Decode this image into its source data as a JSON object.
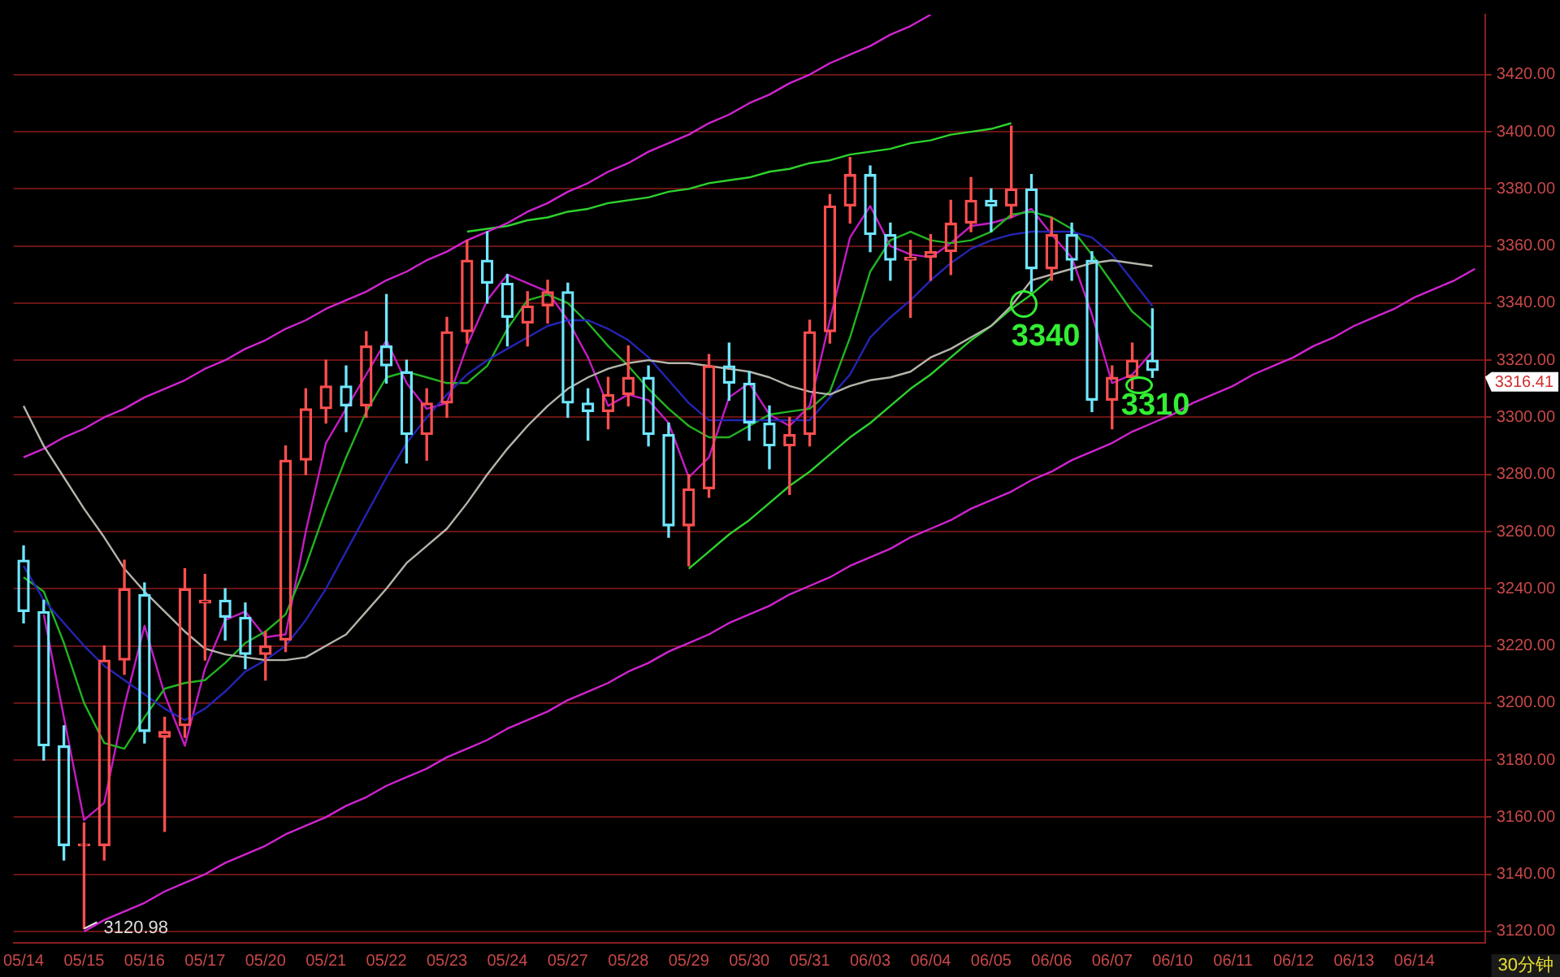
{
  "chart_data": {
    "type": "candlestick",
    "categories": [
      "05/14",
      null,
      null,
      "05/15",
      null,
      null,
      "05/16",
      null,
      null,
      "05/17",
      null,
      null,
      "05/20",
      null,
      null,
      "05/21",
      null,
      null,
      "05/22",
      null,
      null,
      "05/23",
      null,
      null,
      "05/24",
      null,
      null,
      "05/27",
      null,
      null,
      "05/28",
      null,
      null,
      "05/29",
      null,
      null,
      "05/30",
      null,
      null,
      "05/31",
      null,
      null,
      "06/03",
      null,
      null,
      "06/04",
      null,
      null,
      "06/05",
      null,
      null,
      "06/06",
      null,
      null,
      "06/07",
      null,
      null,
      "06/10",
      null,
      null,
      "06/11",
      null,
      null,
      "06/12",
      null,
      null,
      "06/13",
      null,
      null,
      "06/14",
      null,
      null,
      null
    ],
    "ohlc": [
      [
        3250,
        3255,
        3228,
        3232
      ],
      [
        3232,
        3236,
        3180,
        3185
      ],
      [
        3185,
        3192,
        3145,
        3150
      ],
      [
        3150,
        3158,
        3120.98,
        3150
      ],
      [
        3150,
        3220,
        3145,
        3215
      ],
      [
        3215,
        3250,
        3210,
        3240
      ],
      [
        3238,
        3242,
        3186,
        3190
      ],
      [
        3188,
        3195,
        3155,
        3190
      ],
      [
        3192,
        3247,
        3188,
        3240
      ],
      [
        3235,
        3245,
        3215,
        3236
      ],
      [
        3236,
        3240,
        3222,
        3230
      ],
      [
        3230,
        3235,
        3212,
        3217
      ],
      [
        3217,
        3225,
        3208,
        3220
      ],
      [
        3222,
        3290,
        3218,
        3285
      ],
      [
        3285,
        3310,
        3280,
        3303
      ],
      [
        3303,
        3320,
        3298,
        3311
      ],
      [
        3311,
        3318,
        3295,
        3304
      ],
      [
        3304,
        3330,
        3300,
        3325
      ],
      [
        3325,
        3343,
        3312,
        3318
      ],
      [
        3316,
        3320,
        3284,
        3294
      ],
      [
        3294,
        3310,
        3285,
        3305
      ],
      [
        3305,
        3335,
        3300,
        3330
      ],
      [
        3330,
        3362,
        3326,
        3355
      ],
      [
        3355,
        3365,
        3340,
        3347
      ],
      [
        3347,
        3350,
        3325,
        3335
      ],
      [
        3333,
        3344,
        3325,
        3339
      ],
      [
        3339,
        3348,
        3333,
        3344
      ],
      [
        3344,
        3347,
        3300,
        3305
      ],
      [
        3305,
        3310,
        3292,
        3302
      ],
      [
        3302,
        3314,
        3296,
        3308
      ],
      [
        3308,
        3325,
        3304,
        3314
      ],
      [
        3314,
        3318,
        3290,
        3294
      ],
      [
        3294,
        3298,
        3258,
        3262
      ],
      [
        3262,
        3280,
        3248,
        3275
      ],
      [
        3275,
        3322,
        3272,
        3318
      ],
      [
        3318,
        3326,
        3306,
        3312
      ],
      [
        3312,
        3316,
        3292,
        3298
      ],
      [
        3298,
        3304,
        3282,
        3290
      ],
      [
        3290,
        3300,
        3273,
        3294
      ],
      [
        3294,
        3334,
        3290,
        3330
      ],
      [
        3330,
        3378,
        3326,
        3374
      ],
      [
        3374,
        3391,
        3368,
        3385
      ],
      [
        3385,
        3388,
        3358,
        3364
      ],
      [
        3364,
        3368,
        3348,
        3355
      ],
      [
        3355,
        3362,
        3335,
        3356
      ],
      [
        3356,
        3364,
        3348,
        3358
      ],
      [
        3358,
        3376,
        3350,
        3368
      ],
      [
        3368,
        3384,
        3365,
        3376
      ],
      [
        3376,
        3380,
        3365,
        3374
      ],
      [
        3374,
        3402,
        3370,
        3380
      ],
      [
        3380,
        3385,
        3344,
        3352
      ],
      [
        3352,
        3370,
        3348,
        3364
      ],
      [
        3364,
        3368,
        3348,
        3355
      ],
      [
        3355,
        3358,
        3302,
        3306
      ],
      [
        3306,
        3318,
        3296,
        3314
      ],
      [
        3314,
        3326,
        3310,
        3320
      ],
      [
        3320,
        3338,
        3314,
        3316.41
      ],
      null,
      null,
      null,
      null,
      null,
      null,
      null,
      null,
      null,
      null,
      null,
      null,
      null,
      null,
      null,
      null
    ],
    "colors": [
      "#6fe6ff",
      "#6fe6ff",
      "#6fe6ff",
      "#ff4f4f",
      "#ff4f4f",
      "#ff4f4f",
      "#6fe6ff",
      "#ff4f4f",
      "#ff4f4f",
      "#ff4f4f",
      "#6fe6ff",
      "#6fe6ff",
      "#ff4f4f",
      "#ff4f4f",
      "#ff4f4f",
      "#ff4f4f",
      "#6fe6ff",
      "#ff4f4f",
      "#6fe6ff",
      "#6fe6ff",
      "#ff4f4f",
      "#ff4f4f",
      "#ff4f4f",
      "#6fe6ff",
      "#6fe6ff",
      "#ff4f4f",
      "#ff4f4f",
      "#6fe6ff",
      "#6fe6ff",
      "#ff4f4f",
      "#ff4f4f",
      "#6fe6ff",
      "#6fe6ff",
      "#ff4f4f",
      "#ff4f4f",
      "#6fe6ff",
      "#6fe6ff",
      "#6fe6ff",
      "#ff4f4f",
      "#ff4f4f",
      "#ff4f4f",
      "#ff4f4f",
      "#6fe6ff",
      "#6fe6ff",
      "#ff4f4f",
      "#ff4f4f",
      "#ff4f4f",
      "#ff4f4f",
      "#6fe6ff",
      "#ff4f4f",
      "#6fe6ff",
      "#ff4f4f",
      "#6fe6ff",
      "#6fe6ff",
      "#ff4f4f",
      "#ff4f4f",
      "#6fe6ff",
      null,
      null,
      null,
      null,
      null,
      null,
      null,
      null,
      null,
      null,
      null,
      null,
      null,
      null,
      null,
      null
    ],
    "series": [
      {
        "type": "line",
        "color": "#b4b4aa",
        "values": [
          3304,
          3290,
          3279,
          3268,
          3258,
          3247,
          3239,
          3232,
          3225,
          3219,
          3217,
          3216,
          3215,
          3215,
          3216,
          3220,
          3224,
          3232,
          3240,
          3249,
          3255,
          3261,
          3270,
          3280,
          3289,
          3297,
          3304,
          3310,
          3314,
          3317,
          3319,
          3320,
          3319,
          3319,
          3318,
          3317,
          3316,
          3314,
          3311,
          3309,
          3308,
          3311,
          3313,
          3314,
          3316,
          3321,
          3324,
          3328,
          3332,
          3339,
          3348,
          3350,
          3352,
          3354,
          3355,
          3354,
          3353,
          null,
          null,
          null,
          null,
          null,
          null,
          null,
          null,
          null,
          null,
          null,
          null,
          null,
          null,
          null,
          null
        ]
      },
      {
        "type": "line",
        "color": "#2424b4",
        "values": [
          3248,
          3236,
          3228,
          3220,
          3213,
          3208,
          3203,
          3198,
          3194,
          3198,
          3204,
          3211,
          3215,
          3220,
          3229,
          3240,
          3253,
          3266,
          3279,
          3291,
          3300,
          3308,
          3315,
          3320,
          3324,
          3328,
          3332,
          3334,
          3334,
          3331,
          3327,
          3321,
          3313,
          3305,
          3299,
          3299,
          3299,
          3299,
          3299,
          3299,
          3307,
          3315,
          3328,
          3335,
          3341,
          3348,
          3354,
          3359,
          3362,
          3364,
          3365,
          3365,
          3365,
          3363,
          3357,
          3348,
          3339,
          null,
          null,
          null,
          null,
          null,
          null,
          null,
          null,
          null,
          null,
          null,
          null,
          null,
          null,
          null,
          null
        ]
      },
      {
        "type": "line",
        "color": "#22b422",
        "values": [
          3244,
          3239,
          3221,
          3200,
          3186,
          3184,
          3195,
          3205,
          3207,
          3208,
          3214,
          3221,
          3225,
          3231,
          3248,
          3268,
          3286,
          3302,
          3314,
          3316,
          3314,
          3312,
          3312,
          3318,
          3331,
          3341,
          3343,
          3340,
          3333,
          3325,
          3318,
          3310,
          3303,
          3297,
          3293,
          3293,
          3297,
          3301,
          3302,
          3303,
          3309,
          3328,
          3351,
          3362,
          3365,
          3362,
          3361,
          3362,
          3365,
          3371,
          3372,
          3370,
          3366,
          3357,
          3347,
          3337,
          3331,
          null,
          null,
          null,
          null,
          null,
          null,
          null,
          null,
          null,
          null,
          null,
          null,
          null,
          null,
          null,
          null
        ]
      },
      {
        "type": "line",
        "color": "#c41cc4",
        "values": [
          null,
          3231,
          3195,
          3159,
          3165,
          3199,
          3227,
          3203,
          3185,
          3212,
          3229,
          3232,
          3223,
          3224,
          3260,
          3291,
          3303,
          3315,
          3327,
          3312,
          3303,
          3305,
          3325,
          3341,
          3350,
          3347,
          3344,
          3334,
          3321,
          3304,
          3308,
          3306,
          3298,
          3279,
          3286,
          3307,
          3312,
          3301,
          3297,
          3304,
          3334,
          3363,
          3374,
          3360,
          3357,
          3356,
          3361,
          3367,
          3368,
          3370,
          3373,
          3364,
          3356,
          3336,
          3312,
          3315,
          3323,
          null,
          null,
          null,
          null,
          null,
          null,
          null,
          null,
          null,
          null,
          null,
          null,
          null,
          null,
          null,
          null
        ]
      },
      {
        "type": "line",
        "color": "#d024d0",
        "values": [
          3286,
          3289,
          3293,
          3296,
          3300,
          3303,
          3307,
          3310,
          3313,
          3317,
          3320,
          3324,
          3327,
          3331,
          3334,
          3338,
          3341,
          3344,
          3348,
          3351,
          3355,
          3358,
          3362,
          3365,
          3368,
          3372,
          3375,
          3379,
          3382,
          3386,
          3389,
          3393,
          3396,
          3399,
          3403,
          3406,
          3410,
          3413,
          3417,
          3420,
          3424,
          3427,
          3430,
          3434,
          3437,
          3441,
          null,
          null,
          null,
          null,
          null,
          null,
          null,
          null,
          null,
          null,
          null,
          null,
          null,
          null,
          null,
          null,
          null,
          null,
          null,
          null,
          null,
          null,
          null,
          null,
          null,
          null,
          null
        ]
      },
      {
        "type": "line",
        "color": "#d024d0",
        "values": [
          null,
          null,
          null,
          3120,
          3124,
          3127,
          3130,
          3134,
          3137,
          3140,
          3144,
          3147,
          3150,
          3154,
          3157,
          3160,
          3164,
          3167,
          3171,
          3174,
          3177,
          3181,
          3184,
          3187,
          3191,
          3194,
          3197,
          3201,
          3204,
          3207,
          3211,
          3214,
          3218,
          3221,
          3224,
          3228,
          3231,
          3234,
          3238,
          3241,
          3244,
          3248,
          3251,
          3254,
          3258,
          3261,
          3264,
          3268,
          3271,
          3274,
          3278,
          3281,
          3285,
          3288,
          3291,
          3295,
          3298,
          3301,
          3305,
          3308,
          3311,
          3315,
          3318,
          3321,
          3325,
          3328,
          3332,
          3335,
          3338,
          3342,
          3345,
          3348,
          3352
        ]
      },
      {
        "type": "line",
        "color": "#2ed22e",
        "values": [
          null,
          null,
          null,
          null,
          null,
          null,
          null,
          null,
          null,
          null,
          null,
          null,
          null,
          null,
          null,
          null,
          null,
          null,
          null,
          null,
          null,
          null,
          3365,
          3366,
          3367,
          3369,
          3370,
          3372,
          3373,
          3375,
          3376,
          3377,
          3379,
          3380,
          3382,
          3383,
          3384,
          3386,
          3387,
          3389,
          3390,
          3392,
          3393,
          3394,
          3396,
          3397,
          3399,
          3400,
          3401,
          3403,
          null,
          null,
          null,
          null,
          null,
          null,
          null,
          null,
          null,
          null,
          null,
          null,
          null,
          null,
          null,
          null,
          null,
          null,
          null,
          null,
          null,
          null,
          null
        ]
      },
      {
        "type": "line",
        "color": "#2ed22e",
        "values": [
          null,
          null,
          null,
          null,
          null,
          null,
          null,
          null,
          null,
          null,
          null,
          null,
          null,
          null,
          null,
          null,
          null,
          null,
          null,
          null,
          null,
          null,
          null,
          null,
          null,
          null,
          null,
          null,
          null,
          null,
          null,
          null,
          null,
          3247,
          3253,
          3259,
          3264,
          3270,
          3276,
          3281,
          3287,
          3293,
          3298,
          3304,
          3310,
          3315,
          3321,
          3327,
          3332,
          3338,
          3343,
          3349,
          null,
          null,
          null,
          null,
          null,
          null,
          null,
          null,
          null,
          null,
          null,
          null,
          null,
          null,
          null,
          null,
          null,
          null,
          null,
          null,
          null
        ]
      }
    ],
    "ylim": [
      3116,
      3441
    ],
    "yticks": [
      {
        "value": 3120,
        "label": "3120.00"
      },
      {
        "value": 3140,
        "label": "3140.00"
      },
      {
        "value": 3160,
        "label": "3160.00"
      },
      {
        "value": 3180,
        "label": "3180.00"
      },
      {
        "value": 3200,
        "label": "3200.00"
      },
      {
        "value": 3220,
        "label": "3220.00"
      },
      {
        "value": 3240,
        "label": "3240.00"
      },
      {
        "value": 3260,
        "label": "3260.00"
      },
      {
        "value": 3280,
        "label": "3280.00"
      },
      {
        "value": 3300,
        "label": "3300.00"
      },
      {
        "value": 3320,
        "label": "3320.00"
      },
      {
        "value": 3340,
        "label": "3340.00"
      },
      {
        "value": 3360,
        "label": "3360.00"
      },
      {
        "value": 3380,
        "label": "3380.00"
      },
      {
        "value": 3400,
        "label": "3400.00"
      },
      {
        "value": 3420,
        "label": "3420.00"
      }
    ],
    "grid": "y",
    "annotations": [
      "3340",
      "3310",
      "3120.98",
      "3316.41",
      "30分钟"
    ]
  }
}
